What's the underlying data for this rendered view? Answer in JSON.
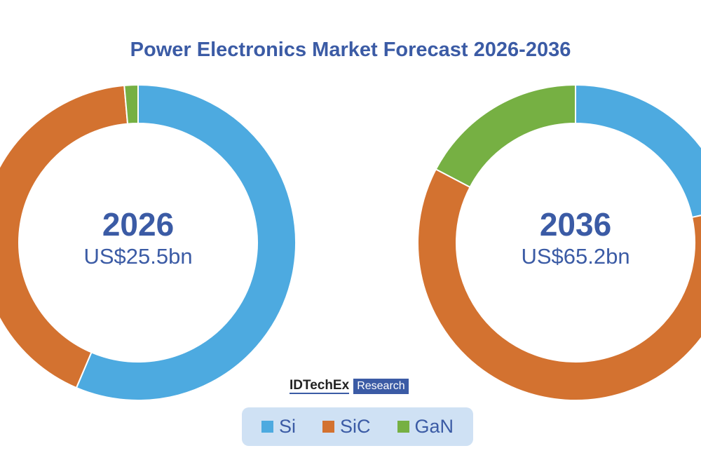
{
  "chart_data": {
    "type": "pie",
    "title": "Power Electronics Market Forecast 2026-2036",
    "legend": [
      "Si",
      "SiC",
      "GaN"
    ],
    "legend_placement": "bottom",
    "colors": {
      "Si": "#4DAAE0",
      "SiC": "#D37230",
      "GaN": "#76B043"
    },
    "charts": [
      {
        "year": "2026",
        "total_label": "US$25.5bn",
        "slices": [
          {
            "name": "Si",
            "value": 56.4
          },
          {
            "name": "SiC",
            "value": 42.2
          },
          {
            "name": "GaN",
            "value": 1.4
          }
        ]
      },
      {
        "year": "2036",
        "total_label": "US$65.2bn",
        "slices": [
          {
            "name": "Si",
            "value": 21.6
          },
          {
            "name": "SiC",
            "value": 61.1
          },
          {
            "name": "GaN",
            "value": 17.3
          }
        ]
      }
    ]
  },
  "logo": {
    "brand": "IDTechEx",
    "suffix": "Research"
  }
}
